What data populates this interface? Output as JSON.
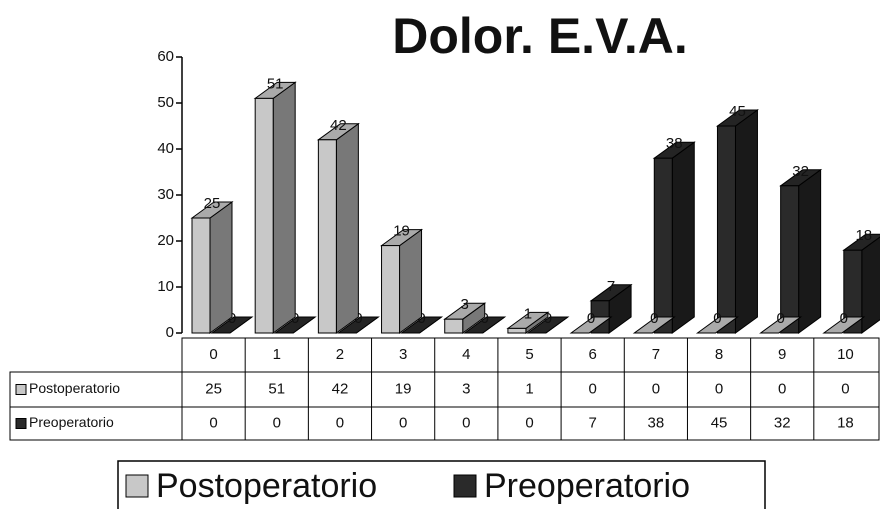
{
  "chart_data": {
    "type": "bar3d",
    "title": "Dolor. E.V.A.",
    "categories": [
      "0",
      "1",
      "2",
      "3",
      "4",
      "5",
      "6",
      "7",
      "8",
      "9",
      "10"
    ],
    "series": [
      {
        "name": "Postoperatorio",
        "color": "#c8c8c8",
        "values": [
          25,
          51,
          42,
          19,
          3,
          1,
          0,
          0,
          0,
          0,
          0
        ]
      },
      {
        "name": "Preoperatorio",
        "color": "#2a2a2a",
        "values": [
          0,
          0,
          0,
          0,
          0,
          0,
          7,
          38,
          45,
          32,
          18
        ]
      }
    ],
    "ylim": [
      0,
      60
    ],
    "yticks": [
      0,
      10,
      20,
      30,
      40,
      50,
      60
    ],
    "legend": "bottom"
  }
}
